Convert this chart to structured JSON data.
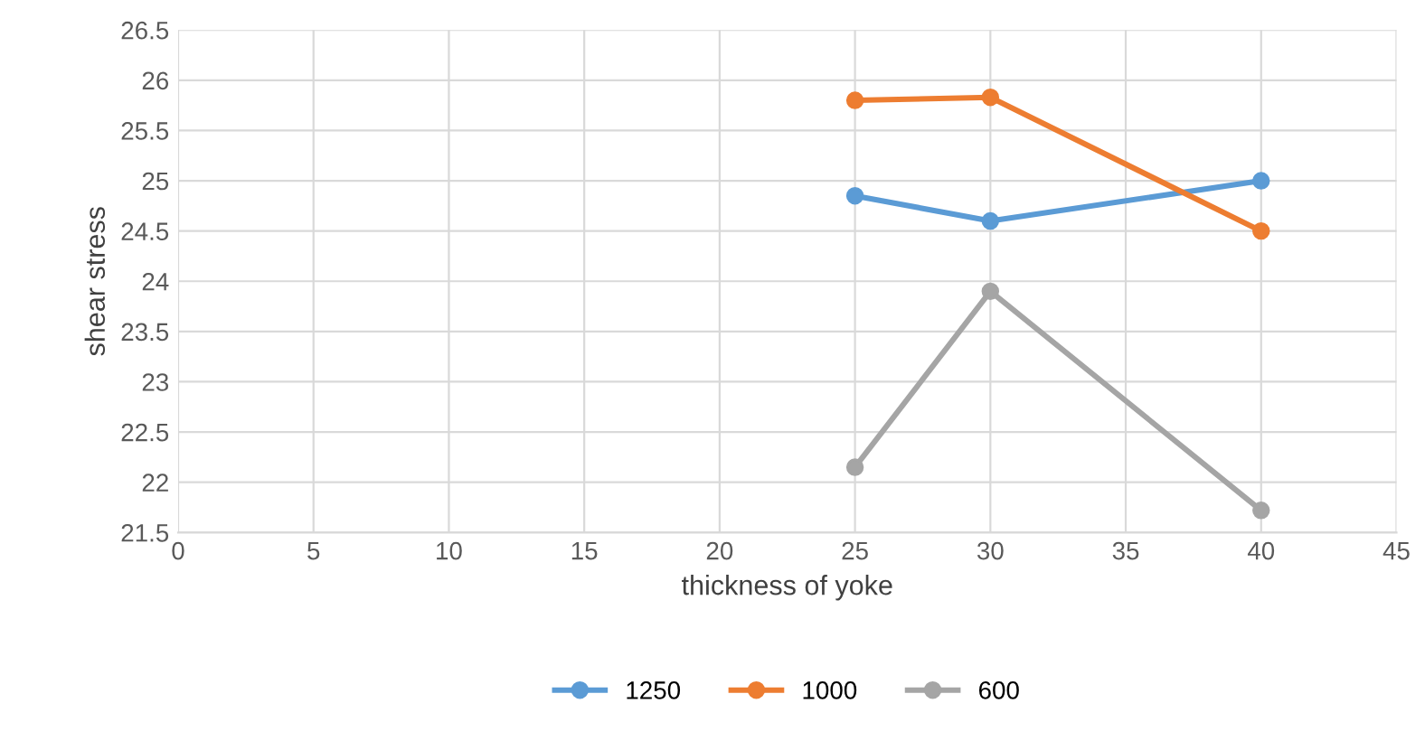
{
  "chart_data": {
    "type": "line",
    "xlabel": "thickness of yoke",
    "ylabel": "shear stress",
    "x": [
      25,
      30,
      40
    ],
    "series": [
      {
        "name": "1250",
        "color": "#5b9bd5",
        "values": [
          24.85,
          24.6,
          25.0
        ]
      },
      {
        "name": "1000",
        "color": "#ed7d31",
        "values": [
          25.8,
          25.83,
          24.5
        ]
      },
      {
        "name": "600",
        "color": "#a5a5a5",
        "values": [
          22.15,
          23.9,
          21.72
        ]
      }
    ],
    "xlim": [
      0,
      45
    ],
    "xticks": [
      0,
      5,
      10,
      15,
      20,
      25,
      30,
      35,
      40,
      45
    ],
    "ylim": [
      21.5,
      26.5
    ],
    "yticks": [
      21.5,
      22,
      22.5,
      23,
      23.5,
      24,
      24.5,
      25,
      25.5,
      26,
      26.5
    ],
    "grid": true,
    "legend": "bottom",
    "marker": "circle",
    "line_style": "solid"
  }
}
